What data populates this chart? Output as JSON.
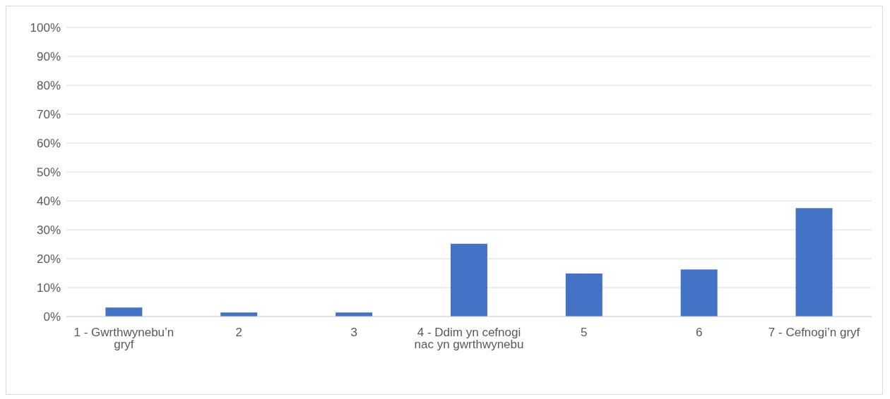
{
  "chart_data": {
    "type": "bar",
    "categories": [
      "1 - Gwrthwynebu’n gryf",
      "2",
      "3",
      "4 - Ddim yn cefnogi nac yn gwrthwynebu",
      "5",
      "6",
      "7 - Cefnogi’n gryf"
    ],
    "values": [
      3.1,
      1.4,
      1.4,
      25.2,
      14.9,
      16.3,
      37.5
    ],
    "color": "#4472c4",
    "ylim": [
      0,
      100
    ],
    "yticks": [
      {
        "value": 0,
        "label": "0%"
      },
      {
        "value": 10,
        "label": "10%"
      },
      {
        "value": 20,
        "label": "20%"
      },
      {
        "value": 30,
        "label": "30%"
      },
      {
        "value": 40,
        "label": "40%"
      },
      {
        "value": 50,
        "label": "50%"
      },
      {
        "value": 60,
        "label": "60%"
      },
      {
        "value": 70,
        "label": "70%"
      },
      {
        "value": 80,
        "label": "80%"
      },
      {
        "value": 90,
        "label": "90%"
      },
      {
        "value": 100,
        "label": "100%"
      }
    ],
    "grid": "y"
  }
}
